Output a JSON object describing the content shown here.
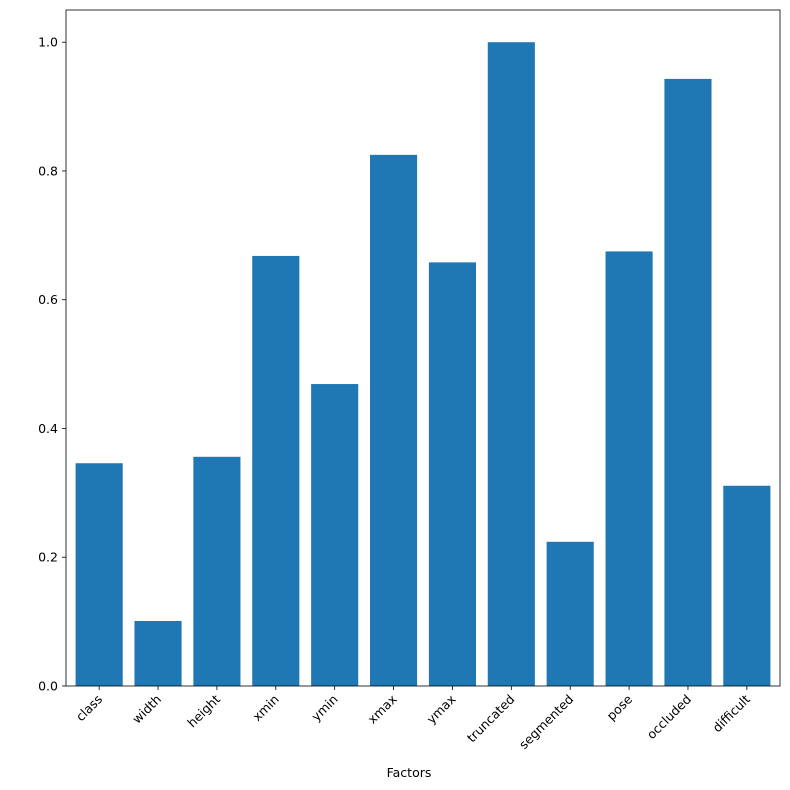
{
  "chart_data": {
    "type": "bar",
    "x_label": "Factors",
    "categories": [
      "class",
      "width",
      "height",
      "xmin",
      "ymin",
      "xmax",
      "ymax",
      "truncated",
      "segmented",
      "pose",
      "occluded",
      "difficult"
    ],
    "values": [
      0.346,
      0.101,
      0.356,
      0.668,
      0.469,
      0.825,
      0.658,
      1.0,
      0.224,
      0.675,
      0.943,
      0.311
    ],
    "color": "#1f77b4",
    "ylim": [
      0,
      1.05
    ],
    "yticks": [
      {
        "value": 0,
        "label": "0.0"
      },
      0.2,
      0.4,
      0.6,
      0.8,
      {
        "value": 1,
        "label": "1.0"
      }
    ],
    "grid": false
  }
}
